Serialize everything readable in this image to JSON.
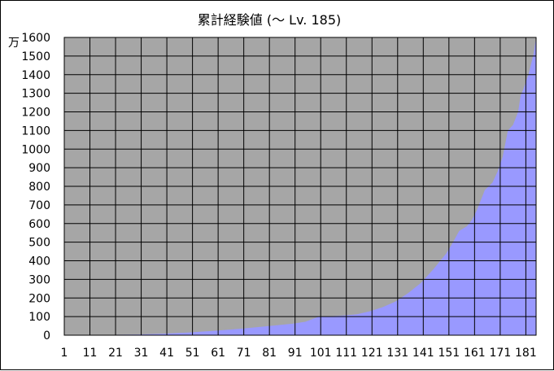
{
  "chart_data": {
    "type": "area",
    "title": "累計経験値 (〜 Lv. 185)",
    "unit_label": "万",
    "xlabel": "",
    "ylabel": "",
    "xlim": [
      1,
      185
    ],
    "ylim": [
      0,
      1600
    ],
    "x_ticks": [
      "1",
      "11",
      "21",
      "31",
      "41",
      "51",
      "61",
      "71",
      "81",
      "91",
      "101",
      "111",
      "121",
      "131",
      "141",
      "151",
      "161",
      "171",
      "181"
    ],
    "y_ticks": [
      "0",
      "100",
      "200",
      "300",
      "400",
      "500",
      "600",
      "700",
      "800",
      "900",
      "1000",
      "1100",
      "1200",
      "1300",
      "1400",
      "1500",
      "1600"
    ],
    "grid": true,
    "legend": "none",
    "colors": {
      "plot_background": "#a6a6a6",
      "area_fill": "#9999ff",
      "grid": "#000000",
      "frame": "#000000"
    },
    "series": [
      {
        "x": [
          15,
          20,
          30,
          40,
          50,
          60,
          70,
          80,
          90,
          95,
          98,
          100,
          105,
          110,
          115,
          120,
          125,
          130,
          135,
          140,
          145,
          150,
          152,
          155,
          158,
          160,
          162,
          165,
          168,
          170,
          172,
          174,
          176,
          178,
          179,
          180,
          182,
          184,
          185
        ],
        "values": [
          1,
          2,
          4,
          8,
          15,
          24,
          35,
          48,
          62,
          72,
          88,
          98,
          102,
          106,
          112,
          128,
          150,
          180,
          225,
          280,
          355,
          440,
          485,
          560,
          585,
          620,
          675,
          780,
          820,
          880,
          960,
          1100,
          1130,
          1200,
          1290,
          1320,
          1400,
          1510,
          1600
        ]
      }
    ]
  }
}
